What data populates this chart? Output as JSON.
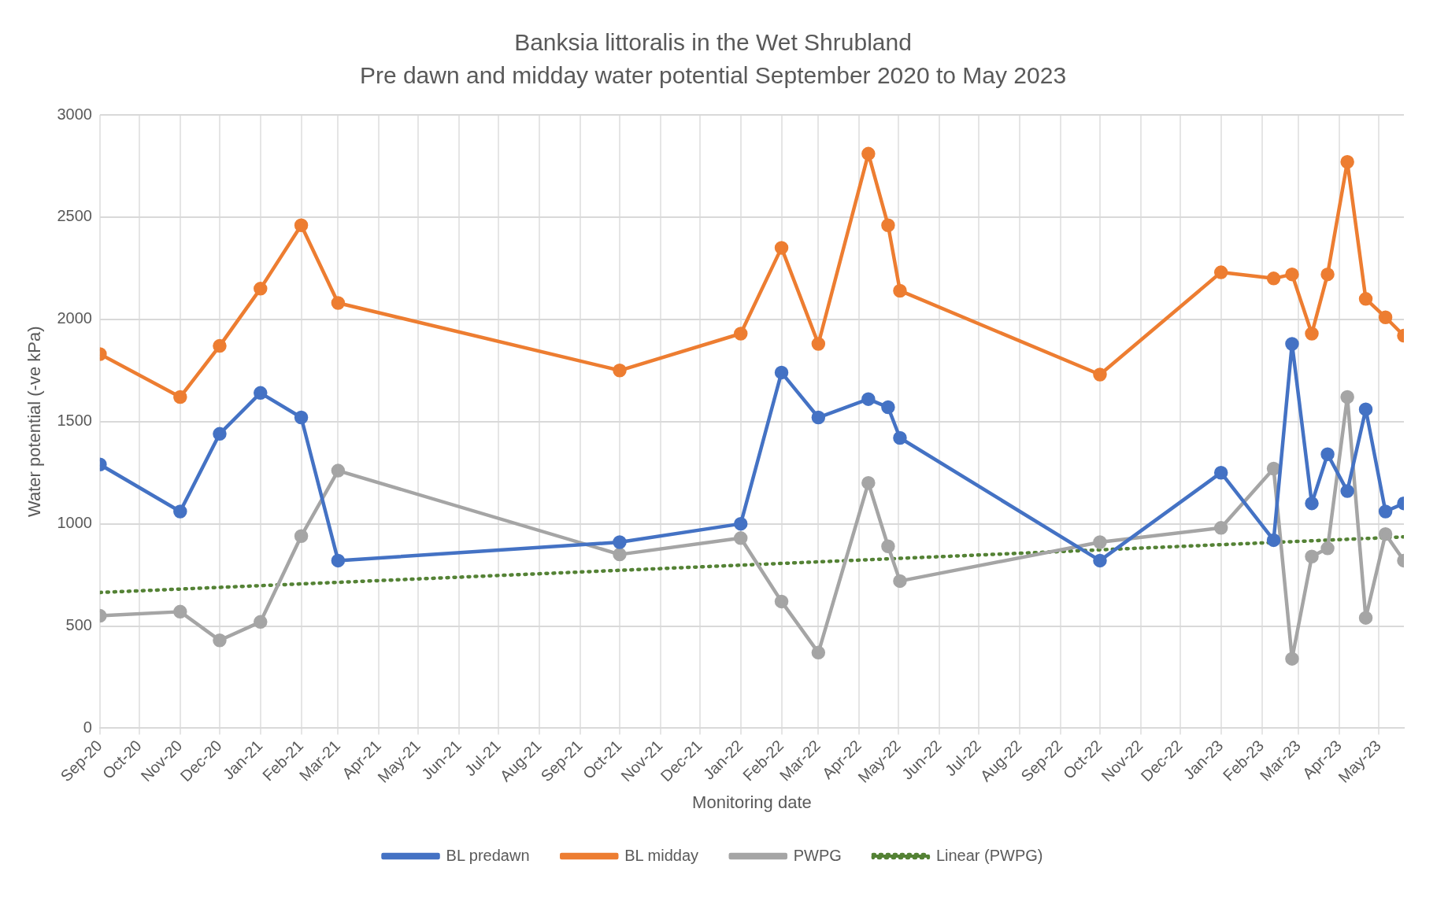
{
  "chart_data": {
    "type": "line",
    "title": "Banksia littoralis in the Wet Shrubland",
    "subtitle": "Pre dawn and midday water potential September 2020 to May 2023",
    "xlabel": "Monitoring date",
    "ylabel": "Water potential (-ve kPa)",
    "x": [
      "2020-09-01",
      "2020-11-01",
      "2020-12-01",
      "2021-01-01",
      "2021-02-01",
      "2021-03-01",
      "2021-10-01",
      "2022-01-01",
      "2022-02-01",
      "2022-03-01",
      "2022-04-08",
      "2022-04-23",
      "2022-05-02",
      "2022-10-01",
      "2023-01-01",
      "2023-02-10",
      "2023-02-24",
      "2023-03-11",
      "2023-03-23",
      "2023-04-07",
      "2023-04-21",
      "2023-05-06",
      "2023-05-20"
    ],
    "series": [
      {
        "name": "BL predawn",
        "color": "#4472c4",
        "values": [
          1290,
          1060,
          1440,
          1640,
          1520,
          820,
          910,
          1000,
          1740,
          1520,
          1610,
          1570,
          1420,
          820,
          1250,
          920,
          1880,
          1100,
          1340,
          1160,
          1560,
          1060,
          1100
        ]
      },
      {
        "name": "BL midday",
        "color": "#ed7d31",
        "values": [
          1830,
          1620,
          1870,
          2150,
          2460,
          2080,
          1750,
          1930,
          2350,
          1880,
          2810,
          2460,
          2140,
          1730,
          2230,
          2200,
          2220,
          1930,
          2220,
          2770,
          2100,
          2010,
          1920
        ]
      },
      {
        "name": "PWPG",
        "color": "#a5a5a5",
        "values": [
          550,
          570,
          430,
          520,
          940,
          1260,
          850,
          930,
          620,
          370,
          1200,
          890,
          720,
          910,
          980,
          1270,
          340,
          840,
          880,
          1620,
          540,
          950,
          820
        ]
      },
      {
        "name": "Linear (PWPG)",
        "color": "#548235",
        "x": [
          "2020-09-01",
          "2023-05-20"
        ],
        "values": [
          664,
          936
        ],
        "marker": "none",
        "line_style": "dotted"
      }
    ],
    "marker": "circle",
    "line_style": "solid",
    "xlim": [
      "2020-09-01",
      "2023-05-20"
    ],
    "xticks": [
      {
        "value": "2020-09-01",
        "label": "Sep-20"
      },
      {
        "value": "2020-10-01",
        "label": "Oct-20"
      },
      {
        "value": "2020-11-01",
        "label": "Nov-20"
      },
      {
        "value": "2020-12-01",
        "label": "Dec-20"
      },
      {
        "value": "2021-01-01",
        "label": "Jan-21"
      },
      {
        "value": "2021-02-01",
        "label": "Feb-21"
      },
      {
        "value": "2021-03-01",
        "label": "Mar-21"
      },
      {
        "value": "2021-04-01",
        "label": "Apr-21"
      },
      {
        "value": "2021-05-01",
        "label": "May-21"
      },
      {
        "value": "2021-06-01",
        "label": "Jun-21"
      },
      {
        "value": "2021-07-01",
        "label": "Jul-21"
      },
      {
        "value": "2021-08-01",
        "label": "Aug-21"
      },
      {
        "value": "2021-09-01",
        "label": "Sep-21"
      },
      {
        "value": "2021-10-01",
        "label": "Oct-21"
      },
      {
        "value": "2021-11-01",
        "label": "Nov-21"
      },
      {
        "value": "2021-12-01",
        "label": "Dec-21"
      },
      {
        "value": "2022-01-01",
        "label": "Jan-22"
      },
      {
        "value": "2022-02-01",
        "label": "Feb-22"
      },
      {
        "value": "2022-03-01",
        "label": "Mar-22"
      },
      {
        "value": "2022-04-01",
        "label": "Apr-22"
      },
      {
        "value": "2022-05-01",
        "label": "May-22"
      },
      {
        "value": "2022-06-01",
        "label": "Jun-22"
      },
      {
        "value": "2022-07-01",
        "label": "Jul-22"
      },
      {
        "value": "2022-08-01",
        "label": "Aug-22"
      },
      {
        "value": "2022-09-01",
        "label": "Sep-22"
      },
      {
        "value": "2022-10-01",
        "label": "Oct-22"
      },
      {
        "value": "2022-11-01",
        "label": "Nov-22"
      },
      {
        "value": "2022-12-01",
        "label": "Dec-22"
      },
      {
        "value": "2023-01-01",
        "label": "Jan-23"
      },
      {
        "value": "2023-02-01",
        "label": "Feb-23"
      },
      {
        "value": "2023-03-01",
        "label": "Mar-23"
      },
      {
        "value": "2023-04-01",
        "label": "Apr-23"
      },
      {
        "value": "2023-05-01",
        "label": "May-23"
      }
    ],
    "ylim": [
      0,
      3000
    ],
    "yticks": [
      0,
      500,
      1000,
      1500,
      2000,
      2500,
      3000
    ],
    "grid": true,
    "legend": "bottom"
  }
}
